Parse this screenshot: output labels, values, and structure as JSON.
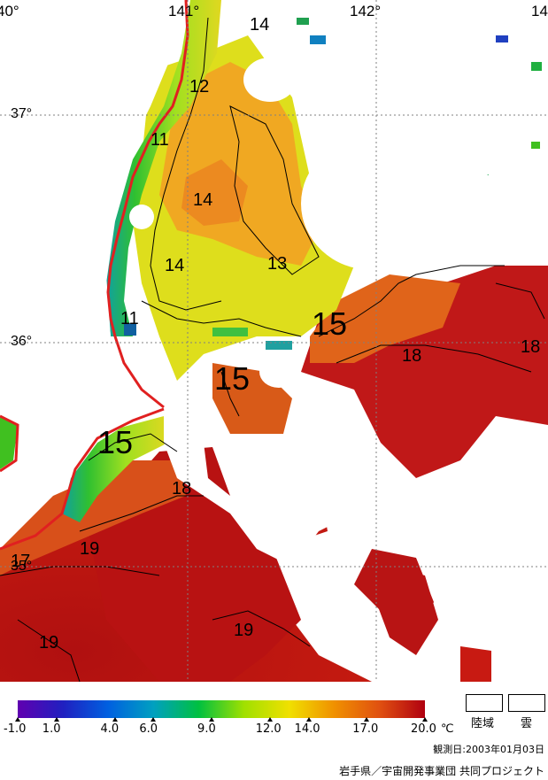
{
  "map": {
    "lon_labels": [
      "40°",
      "141°",
      "142°",
      "14"
    ],
    "lat_labels": [
      "37°",
      "36°",
      "35°"
    ],
    "contour_labels": [
      "14",
      "12",
      "11",
      "14",
      "14",
      "13",
      "11",
      "15",
      "15",
      "18",
      "18",
      "15",
      "18",
      "19",
      "17",
      "19",
      "19"
    ],
    "colors": {
      "coast": "#e02020",
      "land": "#ffffff",
      "cloud": "#ffffff",
      "warm": "#b81010",
      "orange": "#e06a1a",
      "amber": "#f0a020",
      "yellow": "#d8e020",
      "green": "#40c020",
      "cyan": "#10b0c0",
      "blue": "#1040c0"
    }
  },
  "legend": {
    "scale_min": -1.0,
    "scale_max": 20.0,
    "ticks": [
      "-1.0",
      "1.0",
      "4.0",
      "6.0",
      "9.0",
      "12.0",
      "14.0",
      "17.0",
      "20.0"
    ],
    "unit": "℃",
    "gradient_stops": [
      "#6000b0",
      "#2020c0",
      "#0060e0",
      "#00a0c0",
      "#00c040",
      "#a0e000",
      "#f0e000",
      "#f09000",
      "#e05010",
      "#b00010"
    ]
  },
  "key": {
    "land_label": "陸域",
    "cloud_label": "雲"
  },
  "observation_date": "観測日:2003年01月03日",
  "credit": "岩手県／宇宙開発事業団 共同プロジェクト"
}
